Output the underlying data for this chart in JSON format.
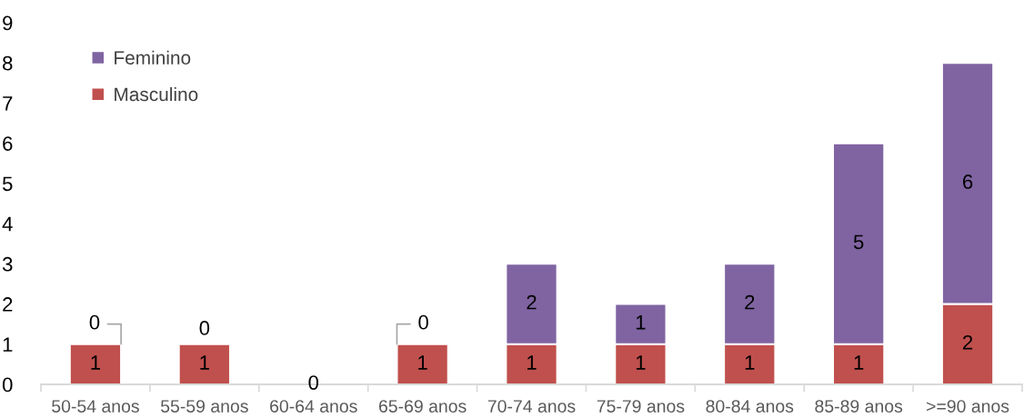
{
  "chart_data": {
    "type": "bar",
    "stacked": true,
    "categories": [
      "50-54 anos",
      "55-59 anos",
      "60-64 anos",
      "65-69 anos",
      "70-74 anos",
      "75-79 anos",
      "80-84 anos",
      "85-89 anos",
      ">=90 anos"
    ],
    "series": [
      {
        "name": "Masculino",
        "color": "#c0504d",
        "values": [
          1,
          1,
          0,
          1,
          1,
          1,
          1,
          1,
          2
        ],
        "value_labels": [
          "1",
          "1",
          "0",
          "1",
          "1",
          "1",
          "1",
          "1",
          "2"
        ]
      },
      {
        "name": "Feminino",
        "color": "#8064a2",
        "values": [
          0,
          0,
          0,
          0,
          2,
          1,
          2,
          5,
          6
        ],
        "value_labels": [
          "0",
          "0",
          null,
          "0",
          "2",
          "1",
          "2",
          "5",
          "6"
        ]
      }
    ],
    "ylim": [
      0,
      9
    ],
    "yticks": [
      0,
      1,
      2,
      3,
      4,
      5,
      6,
      7,
      8,
      9
    ],
    "grid": false,
    "legend": "top left"
  }
}
